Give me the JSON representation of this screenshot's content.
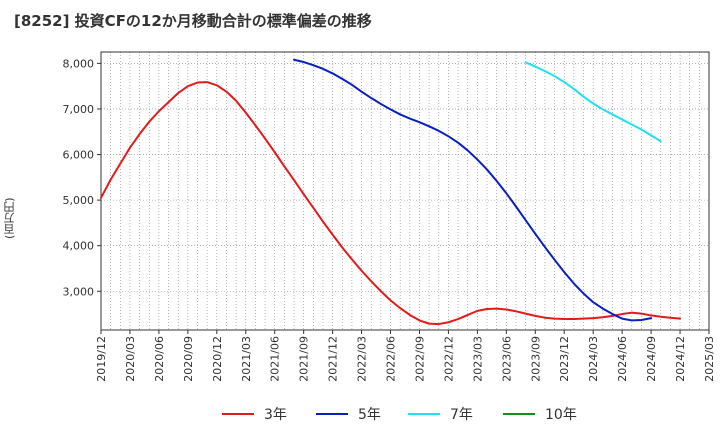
{
  "chart_data": {
    "type": "line",
    "title": "[8252]  投資CFの12か月移動合計の標準偏差の推移",
    "ylabel": "(百万円)",
    "xlabel": "",
    "x_ticks": [
      "2019/12",
      "2020/03",
      "2020/06",
      "2020/09",
      "2020/12",
      "2021/03",
      "2021/06",
      "2021/09",
      "2021/12",
      "2022/03",
      "2022/06",
      "2022/09",
      "2022/12",
      "2023/03",
      "2023/06",
      "2023/09",
      "2023/12",
      "2024/03",
      "2024/06",
      "2024/09",
      "2024/12",
      "2025/03"
    ],
    "y_ticks": [
      3000,
      4000,
      5000,
      6000,
      7000,
      8000
    ],
    "ylim": [
      2150,
      8250
    ],
    "grid": true,
    "legend_position": "bottom",
    "series": [
      {
        "name": "3年",
        "color": "#e31a1c",
        "points": [
          [
            "2019/12",
            5050
          ],
          [
            "2020/01",
            5450
          ],
          [
            "2020/02",
            5800
          ],
          [
            "2020/03",
            6150
          ],
          [
            "2020/04",
            6450
          ],
          [
            "2020/05",
            6720
          ],
          [
            "2020/06",
            6950
          ],
          [
            "2020/07",
            7150
          ],
          [
            "2020/08",
            7350
          ],
          [
            "2020/09",
            7500
          ],
          [
            "2020/10",
            7580
          ],
          [
            "2020/11",
            7590
          ],
          [
            "2020/12",
            7520
          ],
          [
            "2021/01",
            7380
          ],
          [
            "2021/02",
            7180
          ],
          [
            "2021/03",
            6920
          ],
          [
            "2021/04",
            6640
          ],
          [
            "2021/05",
            6350
          ],
          [
            "2021/06",
            6050
          ],
          [
            "2021/07",
            5740
          ],
          [
            "2021/08",
            5440
          ],
          [
            "2021/09",
            5130
          ],
          [
            "2021/10",
            4830
          ],
          [
            "2021/11",
            4530
          ],
          [
            "2021/12",
            4240
          ],
          [
            "2022/01",
            3960
          ],
          [
            "2022/02",
            3700
          ],
          [
            "2022/03",
            3450
          ],
          [
            "2022/04",
            3220
          ],
          [
            "2022/05",
            3000
          ],
          [
            "2022/06",
            2800
          ],
          [
            "2022/07",
            2630
          ],
          [
            "2022/08",
            2480
          ],
          [
            "2022/09",
            2360
          ],
          [
            "2022/10",
            2290
          ],
          [
            "2022/11",
            2280
          ],
          [
            "2022/12",
            2320
          ],
          [
            "2023/01",
            2390
          ],
          [
            "2023/02",
            2480
          ],
          [
            "2023/03",
            2570
          ],
          [
            "2023/04",
            2610
          ],
          [
            "2023/05",
            2620
          ],
          [
            "2023/06",
            2600
          ],
          [
            "2023/07",
            2560
          ],
          [
            "2023/08",
            2510
          ],
          [
            "2023/09",
            2460
          ],
          [
            "2023/10",
            2420
          ],
          [
            "2023/11",
            2400
          ],
          [
            "2023/12",
            2390
          ],
          [
            "2024/01",
            2390
          ],
          [
            "2024/02",
            2400
          ],
          [
            "2024/03",
            2410
          ],
          [
            "2024/04",
            2430
          ],
          [
            "2024/05",
            2460
          ],
          [
            "2024/06",
            2500
          ],
          [
            "2024/07",
            2530
          ],
          [
            "2024/08",
            2510
          ],
          [
            "2024/09",
            2470
          ],
          [
            "2024/10",
            2440
          ],
          [
            "2024/11",
            2420
          ],
          [
            "2024/12",
            2400
          ]
        ]
      },
      {
        "name": "5年",
        "color": "#0a1fbf",
        "points": [
          [
            "2021/08",
            8080
          ],
          [
            "2021/09",
            8030
          ],
          [
            "2021/10",
            7960
          ],
          [
            "2021/11",
            7880
          ],
          [
            "2021/12",
            7780
          ],
          [
            "2022/01",
            7660
          ],
          [
            "2022/02",
            7530
          ],
          [
            "2022/03",
            7380
          ],
          [
            "2022/04",
            7240
          ],
          [
            "2022/05",
            7110
          ],
          [
            "2022/06",
            6990
          ],
          [
            "2022/07",
            6880
          ],
          [
            "2022/08",
            6790
          ],
          [
            "2022/09",
            6710
          ],
          [
            "2022/10",
            6620
          ],
          [
            "2022/11",
            6520
          ],
          [
            "2022/12",
            6400
          ],
          [
            "2023/01",
            6260
          ],
          [
            "2023/02",
            6090
          ],
          [
            "2023/03",
            5890
          ],
          [
            "2023/04",
            5670
          ],
          [
            "2023/05",
            5420
          ],
          [
            "2023/06",
            5150
          ],
          [
            "2023/07",
            4860
          ],
          [
            "2023/08",
            4560
          ],
          [
            "2023/09",
            4260
          ],
          [
            "2023/10",
            3970
          ],
          [
            "2023/11",
            3690
          ],
          [
            "2023/12",
            3420
          ],
          [
            "2024/01",
            3170
          ],
          [
            "2024/02",
            2950
          ],
          [
            "2024/03",
            2760
          ],
          [
            "2024/04",
            2620
          ],
          [
            "2024/05",
            2500
          ],
          [
            "2024/06",
            2400
          ],
          [
            "2024/07",
            2360
          ],
          [
            "2024/08",
            2370
          ],
          [
            "2024/09",
            2410
          ]
        ]
      },
      {
        "name": "7年",
        "color": "#22e0f0",
        "points": [
          [
            "2023/08",
            8020
          ],
          [
            "2023/09",
            7930
          ],
          [
            "2023/10",
            7830
          ],
          [
            "2023/11",
            7720
          ],
          [
            "2023/12",
            7590
          ],
          [
            "2024/01",
            7440
          ],
          [
            "2024/02",
            7270
          ],
          [
            "2024/03",
            7120
          ],
          [
            "2024/04",
            6990
          ],
          [
            "2024/05",
            6880
          ],
          [
            "2024/06",
            6770
          ],
          [
            "2024/07",
            6660
          ],
          [
            "2024/08",
            6550
          ],
          [
            "2024/09",
            6420
          ],
          [
            "2024/10",
            6290
          ]
        ]
      },
      {
        "name": "10年",
        "color": "#1a8a1a",
        "points": []
      }
    ]
  }
}
